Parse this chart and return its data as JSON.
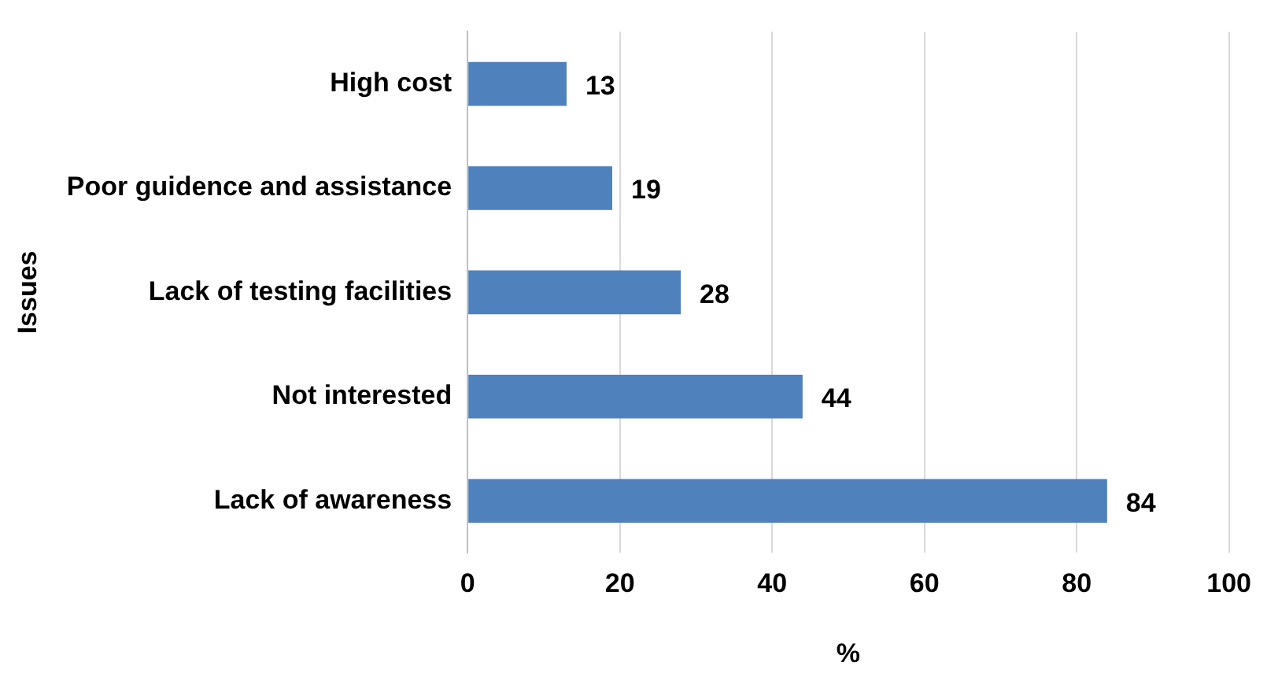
{
  "chart_data": {
    "type": "bar",
    "orientation": "horizontal",
    "xlabel": "%",
    "ylabel": "Issues",
    "categories": [
      "High cost",
      "Poor guidence and assistance",
      "Lack of testing facilities",
      "Not interested",
      "Lack of awareness"
    ],
    "values": [
      13,
      19,
      28,
      44,
      84
    ],
    "color": "#4f81bd",
    "xlim": [
      0,
      100
    ],
    "xticks": [
      0,
      20,
      40,
      60,
      80,
      100
    ],
    "grid": "x",
    "data_labels": true,
    "legend": false
  }
}
